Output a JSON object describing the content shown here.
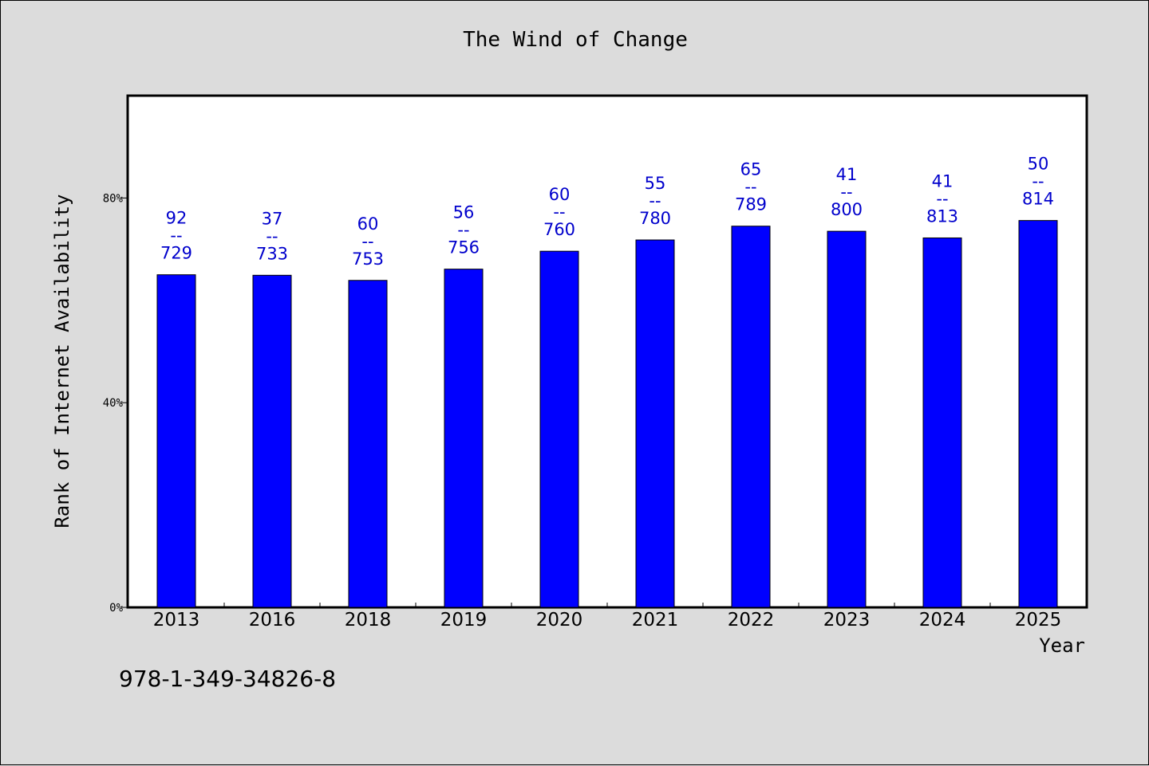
{
  "chart_data": {
    "type": "bar",
    "title": "The Wind of Change",
    "xlabel": "Year",
    "ylabel": "Rank of Internet Availability",
    "categories": [
      "2013",
      "2016",
      "2018",
      "2019",
      "2020",
      "2021",
      "2022",
      "2023",
      "2024",
      "2025"
    ],
    "values": [
      65,
      64.9,
      63.9,
      66.1,
      69.6,
      71.8,
      74.5,
      73.5,
      72.2,
      75.6
    ],
    "data_labels": [
      {
        "top": "92",
        "sep": "--",
        "bottom": "729"
      },
      {
        "top": "37",
        "sep": "--",
        "bottom": "733"
      },
      {
        "top": "60",
        "sep": "--",
        "bottom": "753"
      },
      {
        "top": "56",
        "sep": "--",
        "bottom": "756"
      },
      {
        "top": "60",
        "sep": "--",
        "bottom": "760"
      },
      {
        "top": "55",
        "sep": "--",
        "bottom": "780"
      },
      {
        "top": "65",
        "sep": "--",
        "bottom": "789"
      },
      {
        "top": "41",
        "sep": "--",
        "bottom": "800"
      },
      {
        "top": "41",
        "sep": "--",
        "bottom": "813"
      },
      {
        "top": "50",
        "sep": "--",
        "bottom": "814"
      }
    ],
    "ylim": [
      0,
      100
    ],
    "yticks": [
      0,
      40,
      80
    ],
    "ytick_labels": [
      "0%",
      "40%",
      "80%"
    ],
    "grid": false,
    "colors": {
      "bar": "#0000ff",
      "bar_edge": "#000000",
      "label": "#0000cc",
      "plot_bg": "#ffffff",
      "page_bg": "#dcdcdc"
    }
  },
  "footer_text": "978-1-349-34826-8"
}
